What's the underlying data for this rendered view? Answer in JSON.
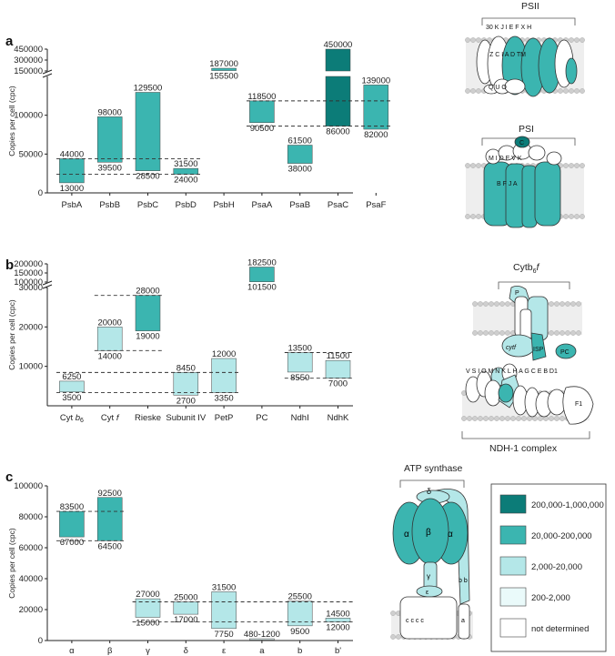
{
  "colors": {
    "very_high": "#0c7c78",
    "high": "#3bb5b0",
    "mid": "#b4e7e8",
    "low": "#eafafa",
    "none": "#ffffff"
  },
  "legend": [
    {
      "label": "200,000-1,000,000",
      "level": "very_high"
    },
    {
      "label": "20,000-200,000",
      "level": "high"
    },
    {
      "label": "2,000-20,000",
      "level": "mid"
    },
    {
      "label": "200-2,000",
      "level": "low"
    },
    {
      "label": "not determined",
      "level": "none"
    }
  ],
  "complexes": {
    "psii": "PSII",
    "psi": "PSI",
    "cytb6f_main": "Cytb",
    "cytb6f_sub": "6",
    "cytb6f_end": "f",
    "ndh": "NDH-1 complex",
    "atp": "ATP synthase"
  },
  "diagram_labels": {
    "psii_top": "30 K J I E F    X  H",
    "psii_mid": "Z  C  I   A   D  TM",
    "psii_lower": "Q  U  O",
    "psi_top": "M  I  D  E  V  K",
    "psi_mid": "B    F   J   A",
    "psi_small": "C",
    "cyt_p": "P",
    "cyt_cytf": "cyt",
    "cyt_f": "f",
    "cyt_isp": "ISP",
    "cyt_pc": "PC",
    "atp_delta": "δ",
    "atp_alpha": "α",
    "atp_beta": "β",
    "atp_gamma": "γ",
    "atp_eps": "ε",
    "atp_b": "b b",
    "atp_c": "c  c  c  c",
    "atp_a": "a",
    "ndh_f1": "F1",
    "ndh_labels": "V  S  I  O  M  N  K  L  H  A  G  C  E  B  D1"
  },
  "chart_data": [
    {
      "panel": "a",
      "type": "bar",
      "ylabel": "Copies per cell (cpc)",
      "ylim_lower": [
        0,
        150000
      ],
      "yticks_lower": [
        0,
        50000,
        100000
      ],
      "yticks_upper": [
        150000,
        300000,
        450000
      ],
      "categories": [
        "PsbA",
        "PsbB",
        "PsbC",
        "PsbD",
        "PsbH",
        "PsaA",
        "PsaB",
        "PsaC",
        "PsaF"
      ],
      "bars": [
        {
          "cat": "PsbA",
          "low": 13000,
          "high": 44000,
          "level": "high",
          "top_label": "44000",
          "bottom_label": "13000"
        },
        {
          "cat": "PsbB",
          "low": 39500,
          "high": 98000,
          "level": "high",
          "top_label": "98000",
          "bottom_label": "39500"
        },
        {
          "cat": "PsbC",
          "low": 28500,
          "high": 129500,
          "level": "high",
          "top_label": "129500",
          "bottom_label": "28500"
        },
        {
          "cat": "PsbD",
          "low": 24000,
          "high": 31500,
          "level": "high",
          "top_label": "31500",
          "bottom_label": "24000"
        },
        {
          "cat": "PsbH",
          "low": 155500,
          "high": 187000,
          "level": "high",
          "top_label": "187000",
          "bottom_label": "155500"
        },
        {
          "cat": "PsaA",
          "low": 90500,
          "high": 118500,
          "level": "high",
          "top_label": "118500",
          "bottom_label": "90500"
        },
        {
          "cat": "PsaB",
          "low": 38000,
          "high": 61500,
          "level": "high",
          "top_label": "61500",
          "bottom_label": "38000"
        },
        {
          "cat": "PsaC",
          "low": 86000,
          "high": 450000,
          "level": "very_high",
          "top_label": "450000",
          "bottom_label": "86000"
        },
        {
          "cat": "PsaF",
          "low": 82000,
          "high": 139000,
          "level": "high",
          "top_label": "139000",
          "bottom_label": "82000"
        }
      ],
      "dashed_lines": [
        {
          "value": 44000,
          "from": "PsbA",
          "to": "PsbD"
        },
        {
          "value": 24000,
          "from": "PsbA",
          "to": "PsbD"
        },
        {
          "value": 118500,
          "from": "PsaA",
          "to": "PsaF"
        },
        {
          "value": 86000,
          "from": "PsaA",
          "to": "PsaF"
        }
      ]
    },
    {
      "panel": "b",
      "type": "bar",
      "ylabel": "Copies per cell (cpc)",
      "ylim_lower": [
        0,
        30000
      ],
      "yticks_lower": [
        10000,
        20000,
        30000
      ],
      "yticks_upper": [
        100000,
        150000,
        200000
      ],
      "categories": [
        "Cyt b6",
        "Cyt f",
        "Rieske",
        "Subunit IV",
        "PetP",
        "PC",
        "NdhI",
        "NdhK"
      ],
      "bars": [
        {
          "cat": "Cyt b6",
          "low": 3500,
          "high": 6250,
          "level": "mid",
          "top_label": "6250",
          "bottom_label": "3500"
        },
        {
          "cat": "Cyt f",
          "low": 14000,
          "high": 20000,
          "level": "mid",
          "top_label": "20000",
          "bottom_label": "14000"
        },
        {
          "cat": "Rieske",
          "low": 19000,
          "high": 28000,
          "level": "high",
          "top_label": "28000",
          "bottom_label": "19000"
        },
        {
          "cat": "Subunit IV",
          "low": 2700,
          "high": 8450,
          "level": "mid",
          "top_label": "8450",
          "bottom_label": "2700"
        },
        {
          "cat": "PetP",
          "low": 3350,
          "high": 12000,
          "level": "mid",
          "top_label": "12000",
          "bottom_label": "3350"
        },
        {
          "cat": "PC",
          "low": 101500,
          "high": 182500,
          "level": "high",
          "top_label": "182500",
          "bottom_label": "101500"
        },
        {
          "cat": "NdhI",
          "low": 8550,
          "high": 13500,
          "level": "mid",
          "top_label": "13500",
          "bottom_label": "8550"
        },
        {
          "cat": "NdhK",
          "low": 7000,
          "high": 11500,
          "level": "mid",
          "top_label": "11500",
          "bottom_label": "7000"
        }
      ],
      "dashed_lines": [
        {
          "value": 28000,
          "from": "Cyt f",
          "to": "Rieske"
        },
        {
          "value": 14000,
          "from": "Cyt f",
          "to": "Rieske"
        },
        {
          "value": 8450,
          "from": "Cyt b6",
          "to": "PetP"
        },
        {
          "value": 3350,
          "from": "Cyt b6",
          "to": "PetP"
        },
        {
          "value": 13500,
          "from": "NdhI",
          "to": "NdhK"
        },
        {
          "value": 7000,
          "from": "NdhI",
          "to": "NdhK"
        }
      ]
    },
    {
      "panel": "c",
      "type": "bar",
      "ylabel": "Copies per cell (cpc)",
      "ylim": [
        0,
        100000
      ],
      "yticks": [
        0,
        20000,
        40000,
        60000,
        80000,
        100000
      ],
      "categories": [
        "α",
        "β",
        "γ",
        "δ",
        "ε",
        "a",
        "b",
        "b'"
      ],
      "bars": [
        {
          "cat": "α",
          "low": 67000,
          "high": 83500,
          "level": "high",
          "top_label": "83500",
          "bottom_label": "67000"
        },
        {
          "cat": "β",
          "low": 64500,
          "high": 92500,
          "level": "high",
          "top_label": "92500",
          "bottom_label": "64500"
        },
        {
          "cat": "γ",
          "low": 15000,
          "high": 27000,
          "level": "mid",
          "top_label": "27000",
          "bottom_label": "15000"
        },
        {
          "cat": "δ",
          "low": 17000,
          "high": 25000,
          "level": "mid",
          "top_label": "25000",
          "bottom_label": "17000"
        },
        {
          "cat": "ε",
          "low": 7750,
          "high": 31500,
          "level": "mid",
          "top_label": "31500",
          "bottom_label": "7750"
        },
        {
          "cat": "a",
          "low": 480,
          "high": 1200,
          "level": "low",
          "top_label": "480-1200",
          "bottom_label": ""
        },
        {
          "cat": "b",
          "low": 9500,
          "high": 25500,
          "level": "mid",
          "top_label": "25500",
          "bottom_label": "9500"
        },
        {
          "cat": "b'",
          "low": 12000,
          "high": 14500,
          "level": "mid",
          "top_label": "14500",
          "bottom_label": "12000"
        }
      ],
      "dashed_lines": [
        {
          "value": 83500,
          "from": "α",
          "to": "β"
        },
        {
          "value": 64500,
          "from": "α",
          "to": "β"
        },
        {
          "value": 25000,
          "from": "γ",
          "to": "b'"
        },
        {
          "value": 12000,
          "from": "γ",
          "to": "b'"
        }
      ]
    }
  ]
}
